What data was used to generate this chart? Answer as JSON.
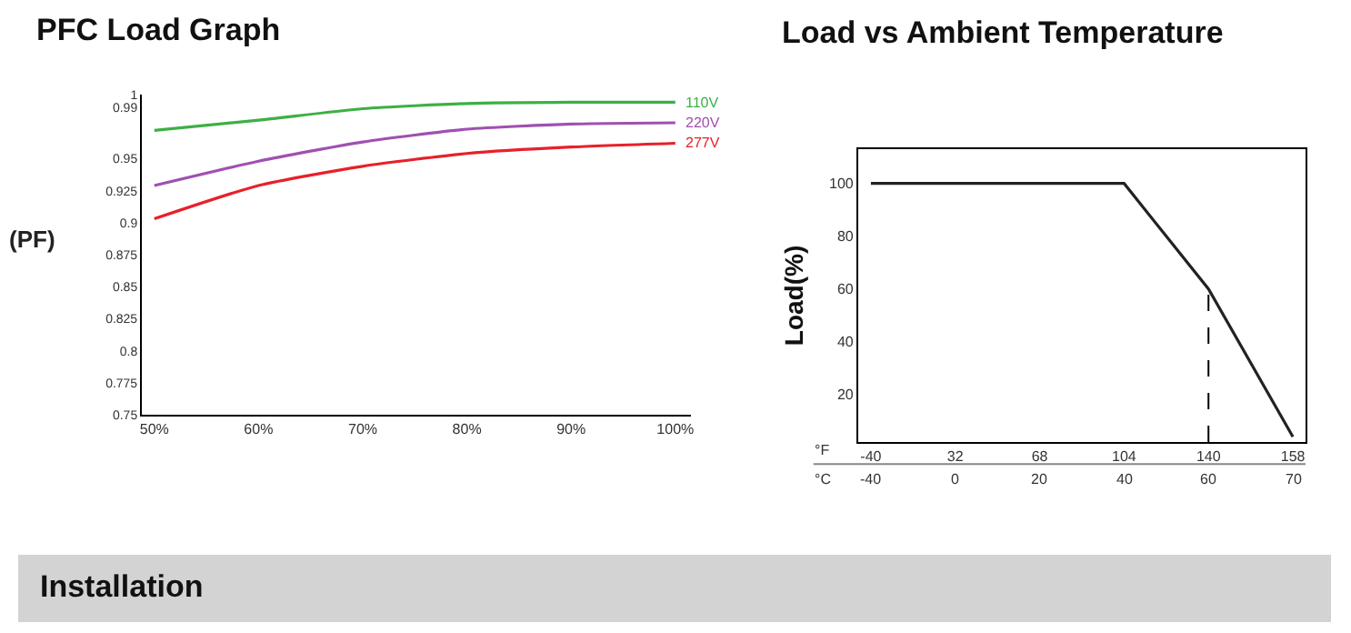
{
  "chart_data": [
    {
      "type": "line",
      "title": "PFC Load Graph",
      "ylabel": "(PF)",
      "x": [
        50,
        60,
        70,
        80,
        90,
        100
      ],
      "series": [
        {
          "name": "110V",
          "color": "#3cb043",
          "values": [
            0.972,
            0.98,
            0.989,
            0.993,
            0.994,
            0.994
          ]
        },
        {
          "name": "220V",
          "color": "#a050b0",
          "values": [
            0.929,
            0.948,
            0.963,
            0.973,
            0.977,
            0.978
          ]
        },
        {
          "name": "277V",
          "color": "#e8202a",
          "values": [
            0.903,
            0.929,
            0.944,
            0.954,
            0.959,
            0.962
          ]
        }
      ],
      "xlim": [
        48.8,
        101.5
      ],
      "xticks": [
        {
          "value": 50,
          "label": "50%"
        },
        {
          "value": 60,
          "label": "60%"
        },
        {
          "value": 70,
          "label": "70%"
        },
        {
          "value": 80,
          "label": "80%"
        },
        {
          "value": 90,
          "label": "90%"
        },
        {
          "value": 100,
          "label": "100%"
        }
      ],
      "ylim": [
        0.75,
        1
      ],
      "yticks": [
        0.75,
        {
          "value": 0.775,
          "label": "0.775"
        },
        0.8,
        {
          "value": 0.825,
          "label": "0.825"
        },
        0.85,
        {
          "value": 0.875,
          "label": "0.875"
        },
        0.9,
        {
          "value": 0.925,
          "label": "0.925"
        },
        0.95,
        0.99,
        1
      ],
      "grid": false,
      "legend": false,
      "marker": "none",
      "line_style": "solid"
    },
    {
      "type": "line",
      "title": "Load vs Ambient Temperature",
      "ylabel": "Load(%)",
      "xlabel": "°F",
      "categories": [
        "-40",
        "32",
        "68",
        "104",
        "140",
        "158"
      ],
      "series": [
        {
          "color": "#222222",
          "values": [
            100,
            100,
            100,
            100,
            60,
            4
          ]
        }
      ],
      "ylim": [
        2,
        113
      ],
      "yticks": [
        20,
        40,
        60,
        80,
        100
      ],
      "ref_lines": [
        {
          "axis": "x",
          "value": "140",
          "line_style": "dashed",
          "color": "#000000"
        }
      ],
      "annotations": [
        "°C",
        "-40",
        "0",
        "20",
        "40",
        "60",
        "70"
      ],
      "grid": false,
      "legend": false,
      "marker": "none",
      "line_style": "solid"
    },
    {
      "type": "other",
      "title": "Installation"
    }
  ]
}
